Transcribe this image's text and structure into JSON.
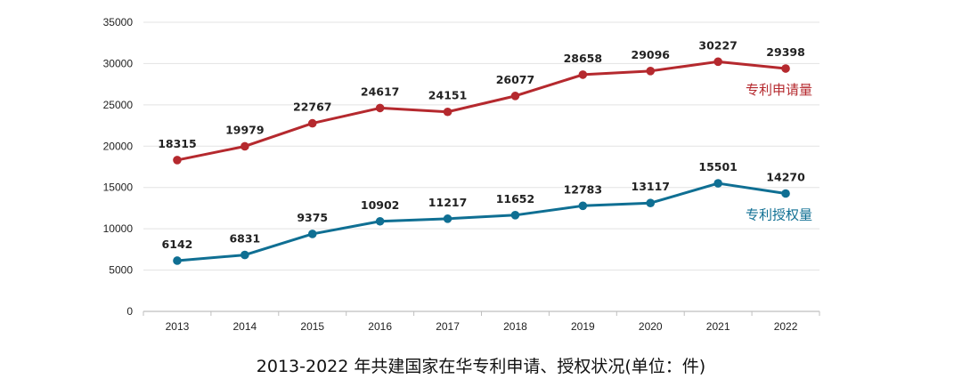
{
  "chart_data": {
    "type": "line",
    "title": "2013-2022 年共建国家在华专利申请、授权状况(单位：件)",
    "xlabel": "",
    "ylabel": "",
    "categories": [
      "2013",
      "2014",
      "2015",
      "2016",
      "2017",
      "2018",
      "2019",
      "2020",
      "2021",
      "2022"
    ],
    "y_ticks": [
      "0",
      "5000",
      "10000",
      "15000",
      "20000",
      "25000",
      "30000",
      "35000"
    ],
    "ylim": [
      0,
      35000
    ],
    "grid": true,
    "legend": "inline-right",
    "series": [
      {
        "name": "专利申请量",
        "color": "#b5292e",
        "values": [
          18315,
          19979,
          22767,
          24617,
          24151,
          26077,
          28658,
          29096,
          30227,
          29398
        ]
      },
      {
        "name": "专利授权量",
        "color": "#0f6f93",
        "values": [
          6142,
          6831,
          9375,
          10902,
          11217,
          11652,
          12783,
          13117,
          15501,
          14270
        ]
      }
    ]
  }
}
